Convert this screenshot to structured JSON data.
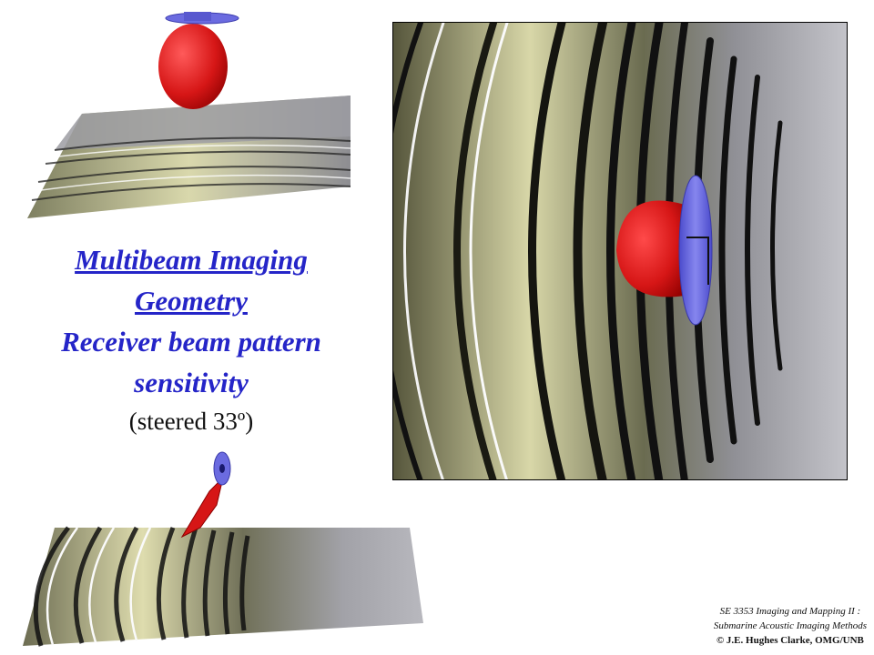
{
  "title": {
    "line1": "Multibeam Imaging",
    "line2": "Geometry",
    "line3": "Receiver beam pattern",
    "line4": "sensitivity",
    "note": "(steered 33º)"
  },
  "credits": {
    "course": "SE 3353 Imaging and Mapping II :",
    "course_sub": "Submarine Acoustic Imaging Methods",
    "copyright": "© J.E. Hughes Clarke, OMG/UNB"
  },
  "colors": {
    "beam_red": "#d61616",
    "transducer_blue": "#6b6be0",
    "seafloor_yellow": "#c8c79a",
    "seafloor_grey": "#a7a7ad",
    "title_blue": "#2525c8"
  }
}
